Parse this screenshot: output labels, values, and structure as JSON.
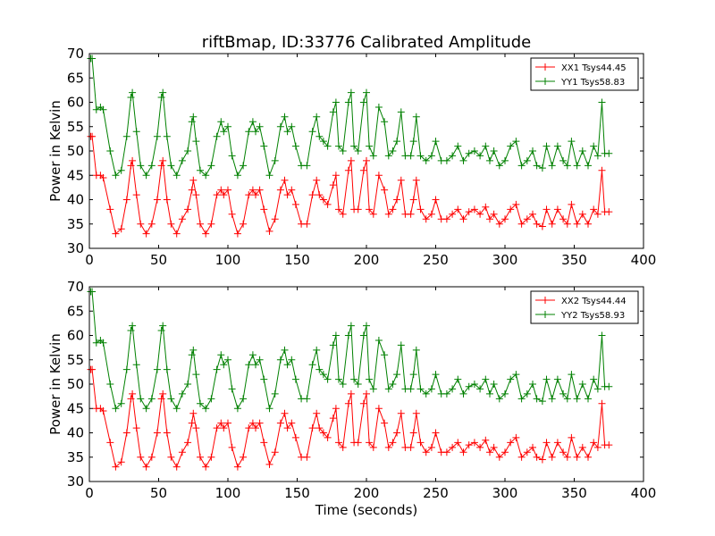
{
  "figure_title": "riftBmap, ID:33776 Calibrated Amplitude",
  "chart_data": [
    {
      "type": "line",
      "title": "riftBmap, ID:33776 Calibrated Amplitude",
      "xlabel": "",
      "ylabel": "Power in Kelvin",
      "xlim": [
        0,
        400
      ],
      "ylim": [
        30,
        70
      ],
      "xticks": [
        0,
        50,
        100,
        150,
        200,
        250,
        300,
        350,
        400
      ],
      "yticks": [
        30,
        35,
        40,
        45,
        50,
        55,
        60,
        65,
        70
      ],
      "legend_position": "top-right",
      "grid": false,
      "series": [
        {
          "name": "XX1 Tsys44.45",
          "color": "#ff0000",
          "marker": "+",
          "x": [
            1,
            2,
            5,
            8,
            10,
            15,
            19,
            23,
            27,
            30,
            31,
            34,
            37,
            41,
            45,
            49,
            52,
            53,
            56,
            59,
            63,
            67,
            71,
            74,
            75,
            77,
            80,
            84,
            88,
            92,
            95,
            97,
            100,
            103,
            107,
            111,
            115,
            118,
            120,
            123,
            126,
            130,
            134,
            138,
            141,
            143,
            146,
            149,
            153,
            157,
            161,
            164,
            166,
            169,
            172,
            176,
            178,
            180,
            183,
            187,
            189,
            191,
            194,
            198,
            200,
            202,
            205,
            209,
            213,
            216,
            219,
            222,
            225,
            228,
            232,
            234,
            236,
            239,
            243,
            247,
            250,
            254,
            258,
            262,
            266,
            270,
            274,
            278,
            282,
            286,
            289,
            292,
            296,
            300,
            304,
            308,
            312,
            316,
            320,
            323,
            327,
            330,
            334,
            338,
            342,
            345,
            348,
            352,
            356,
            360,
            364,
            367,
            370,
            372,
            375
          ],
          "y": [
            53,
            53,
            45,
            45,
            44.5,
            38,
            33,
            34,
            40,
            47,
            48,
            41,
            35,
            33,
            35,
            40,
            47,
            48,
            40,
            35,
            33,
            36,
            38,
            42,
            44,
            41,
            35,
            33,
            35,
            41,
            42,
            41,
            42,
            37,
            33,
            35,
            41,
            42,
            41,
            42,
            38,
            33.5,
            36,
            42,
            44,
            41,
            42,
            39,
            35,
            35,
            41,
            44,
            41,
            40,
            39,
            43,
            45,
            38,
            37,
            46,
            48,
            38,
            38,
            46,
            48,
            38,
            37,
            45,
            42,
            37,
            38,
            40,
            44,
            37,
            37,
            40,
            44,
            38,
            36,
            37,
            40,
            36,
            36,
            37,
            38,
            36,
            37.5,
            38,
            37,
            38.5,
            36,
            37,
            35,
            36,
            38,
            39,
            35,
            36,
            37,
            35,
            34.5,
            38,
            35,
            38,
            36,
            35,
            39,
            35,
            37,
            35,
            38,
            37,
            46,
            37.5,
            37.5
          ]
        },
        {
          "name": "YY1 Tsys58.83",
          "color": "#008000",
          "marker": "+",
          "x": [
            1,
            2,
            5,
            8,
            10,
            15,
            19,
            23,
            27,
            30,
            31,
            34,
            37,
            41,
            45,
            49,
            52,
            53,
            56,
            59,
            63,
            67,
            71,
            74,
            75,
            77,
            80,
            84,
            88,
            92,
            95,
            97,
            100,
            103,
            107,
            111,
            115,
            118,
            120,
            123,
            126,
            130,
            134,
            138,
            141,
            143,
            146,
            149,
            153,
            157,
            161,
            164,
            166,
            169,
            172,
            176,
            178,
            180,
            183,
            187,
            189,
            191,
            194,
            198,
            200,
            202,
            205,
            209,
            213,
            216,
            219,
            222,
            225,
            228,
            232,
            234,
            236,
            239,
            243,
            247,
            250,
            254,
            258,
            262,
            266,
            270,
            274,
            278,
            282,
            286,
            289,
            292,
            296,
            300,
            304,
            308,
            312,
            316,
            320,
            323,
            327,
            330,
            334,
            338,
            342,
            345,
            348,
            352,
            356,
            360,
            364,
            367,
            370,
            372,
            375
          ],
          "y": [
            69,
            69,
            58.5,
            59,
            58.5,
            50,
            45,
            46,
            53,
            61,
            62,
            54,
            47,
            45,
            47,
            53,
            61,
            62,
            53,
            47,
            45,
            48,
            50,
            56,
            57,
            52,
            46,
            45,
            47,
            53,
            56,
            54,
            55,
            49,
            45,
            47,
            54,
            56,
            54,
            55,
            51,
            45,
            48,
            55,
            57,
            54,
            55,
            51,
            47,
            47,
            54,
            57,
            53,
            52,
            51,
            58,
            60,
            51,
            50,
            60,
            62,
            51,
            50,
            60,
            62,
            51,
            49,
            59,
            56,
            49,
            50,
            52,
            58,
            49,
            49,
            52,
            57,
            49,
            48,
            49,
            52,
            48,
            48,
            49,
            51,
            48,
            49.5,
            50,
            49,
            51,
            48,
            50,
            47,
            48,
            51,
            52,
            47,
            48,
            50,
            47,
            46.5,
            51,
            47,
            51,
            48,
            47,
            52,
            47,
            50,
            47,
            51,
            49,
            60,
            49.5,
            49.5
          ]
        }
      ]
    },
    {
      "type": "line",
      "title": "",
      "xlabel": "Time (seconds)",
      "ylabel": "Power in Kelvin",
      "xlim": [
        0,
        400
      ],
      "ylim": [
        30,
        70
      ],
      "xticks": [
        0,
        50,
        100,
        150,
        200,
        250,
        300,
        350,
        400
      ],
      "yticks": [
        30,
        35,
        40,
        45,
        50,
        55,
        60,
        65,
        70
      ],
      "legend_position": "top-right",
      "grid": false,
      "series": [
        {
          "name": "XX2 Tsys44.44",
          "color": "#ff0000",
          "marker": "+",
          "x": [
            1,
            2,
            5,
            8,
            10,
            15,
            19,
            23,
            27,
            30,
            31,
            34,
            37,
            41,
            45,
            49,
            52,
            53,
            56,
            59,
            63,
            67,
            71,
            74,
            75,
            77,
            80,
            84,
            88,
            92,
            95,
            97,
            100,
            103,
            107,
            111,
            115,
            118,
            120,
            123,
            126,
            130,
            134,
            138,
            141,
            143,
            146,
            149,
            153,
            157,
            161,
            164,
            166,
            169,
            172,
            176,
            178,
            180,
            183,
            187,
            189,
            191,
            194,
            198,
            200,
            202,
            205,
            209,
            213,
            216,
            219,
            222,
            225,
            228,
            232,
            234,
            236,
            239,
            243,
            247,
            250,
            254,
            258,
            262,
            266,
            270,
            274,
            278,
            282,
            286,
            289,
            292,
            296,
            300,
            304,
            308,
            312,
            316,
            320,
            323,
            327,
            330,
            334,
            338,
            342,
            345,
            348,
            352,
            356,
            360,
            364,
            367,
            370,
            372,
            375
          ],
          "y": [
            53,
            53,
            45,
            45,
            44.5,
            38,
            33,
            34,
            40,
            47,
            48,
            41,
            35,
            33,
            35,
            40,
            47,
            48,
            40,
            35,
            33,
            36,
            38,
            42,
            44,
            41,
            35,
            33,
            35,
            41,
            42,
            41,
            42,
            37,
            33,
            35,
            41,
            42,
            41,
            42,
            38,
            33.5,
            36,
            42,
            44,
            41,
            42,
            39,
            35,
            35,
            41,
            44,
            41,
            40,
            39,
            43,
            45,
            38,
            37,
            46,
            48,
            38,
            38,
            46,
            48,
            38,
            37,
            45,
            42,
            37,
            38,
            40,
            44,
            37,
            37,
            40,
            44,
            38,
            36,
            37,
            40,
            36,
            36,
            37,
            38,
            36,
            37.5,
            38,
            37,
            38.5,
            36,
            37,
            35,
            36,
            38,
            39,
            35,
            36,
            37,
            35,
            34.5,
            38,
            35,
            38,
            36,
            35,
            39,
            35,
            37,
            35,
            38,
            37,
            46,
            37.5,
            37.5
          ]
        },
        {
          "name": "YY2 Tsys58.93",
          "color": "#008000",
          "marker": "+",
          "x": [
            1,
            2,
            5,
            8,
            10,
            15,
            19,
            23,
            27,
            30,
            31,
            34,
            37,
            41,
            45,
            49,
            52,
            53,
            56,
            59,
            63,
            67,
            71,
            74,
            75,
            77,
            80,
            84,
            88,
            92,
            95,
            97,
            100,
            103,
            107,
            111,
            115,
            118,
            120,
            123,
            126,
            130,
            134,
            138,
            141,
            143,
            146,
            149,
            153,
            157,
            161,
            164,
            166,
            169,
            172,
            176,
            178,
            180,
            183,
            187,
            189,
            191,
            194,
            198,
            200,
            202,
            205,
            209,
            213,
            216,
            219,
            222,
            225,
            228,
            232,
            234,
            236,
            239,
            243,
            247,
            250,
            254,
            258,
            262,
            266,
            270,
            274,
            278,
            282,
            286,
            289,
            292,
            296,
            300,
            304,
            308,
            312,
            316,
            320,
            323,
            327,
            330,
            334,
            338,
            342,
            345,
            348,
            352,
            356,
            360,
            364,
            367,
            370,
            372,
            375
          ],
          "y": [
            69,
            69,
            58.5,
            59,
            58.5,
            50,
            45,
            46,
            53,
            61,
            62,
            54,
            47,
            45,
            47,
            53,
            61,
            62,
            53,
            47,
            45,
            48,
            50,
            56,
            57,
            52,
            46,
            45,
            47,
            53,
            56,
            54,
            55,
            49,
            45,
            47,
            54,
            56,
            54,
            55,
            51,
            45,
            48,
            55,
            57,
            54,
            55,
            51,
            47,
            47,
            54,
            57,
            53,
            52,
            51,
            58,
            60,
            51,
            50,
            60,
            62,
            51,
            50,
            60,
            62,
            51,
            49,
            59,
            56,
            49,
            50,
            52,
            58,
            49,
            49,
            52,
            57,
            49,
            48,
            49,
            52,
            48,
            48,
            49,
            51,
            48,
            49.5,
            50,
            49,
            51,
            48,
            50,
            47,
            48,
            51,
            52,
            47,
            48,
            50,
            47,
            46.5,
            51,
            47,
            51,
            48,
            47,
            52,
            47,
            50,
            47,
            51,
            49,
            60,
            49.5,
            49.5
          ]
        }
      ]
    }
  ]
}
